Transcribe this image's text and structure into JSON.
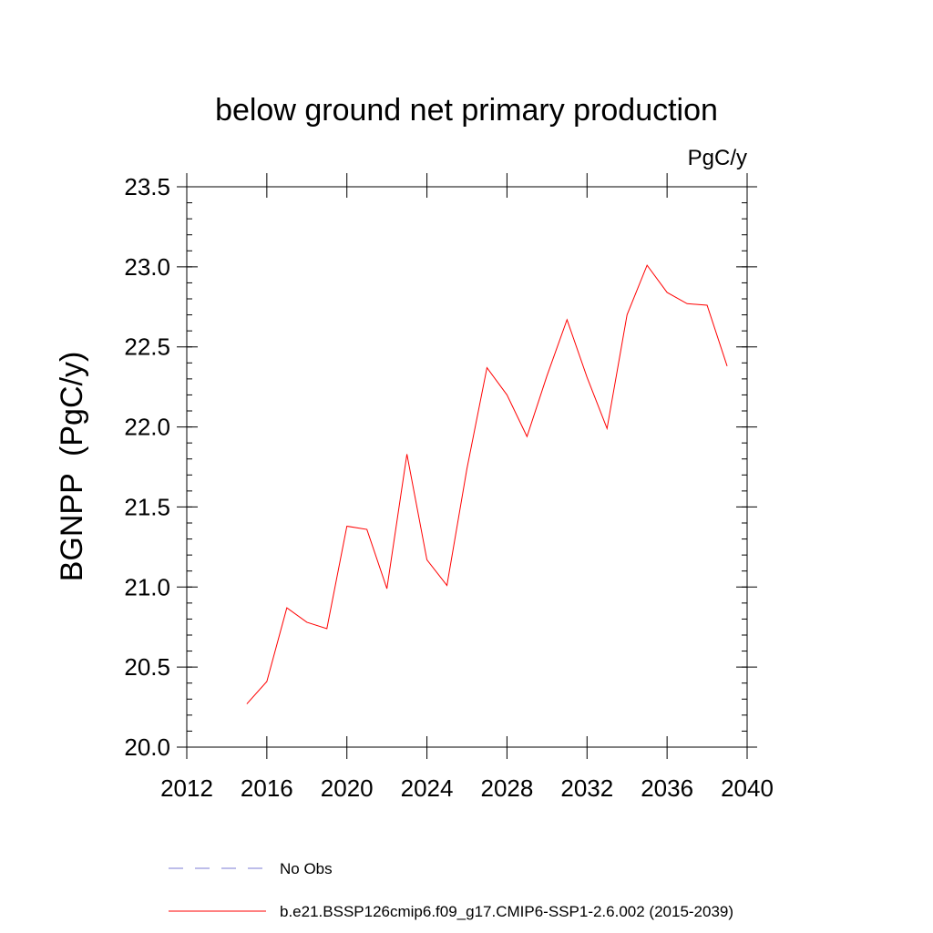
{
  "chart_data": {
    "type": "line",
    "title": "below ground net primary production",
    "units_label": "PgC/y",
    "ylabel": "BGNPP  (PgC/y)",
    "xlabel": "",
    "xlim": [
      2012,
      2040
    ],
    "ylim": [
      20.0,
      23.5
    ],
    "x_ticks": [
      2012,
      2016,
      2020,
      2024,
      2028,
      2032,
      2036,
      2040
    ],
    "y_ticks": [
      20.0,
      20.5,
      21.0,
      21.5,
      22.0,
      22.5,
      23.0,
      23.5
    ],
    "x_tick_labels": [
      "2012",
      "2016",
      "2020",
      "2024",
      "2028",
      "2032",
      "2036",
      "2040"
    ],
    "y_tick_labels": [
      "20.0",
      "20.5",
      "21.0",
      "21.5",
      "22.0",
      "22.5",
      "23.0",
      "23.5"
    ],
    "grid": false,
    "legend_position": "bottom",
    "series": [
      {
        "name": "b.e21.BSSP126cmip6.f09_g17.CMIP6-SSP1-2.6.002 (2015-2039)",
        "color": "#ff0000",
        "style": "solid",
        "x": [
          2015,
          2016,
          2017,
          2018,
          2019,
          2020,
          2021,
          2022,
          2023,
          2024,
          2025,
          2026,
          2027,
          2028,
          2029,
          2030,
          2031,
          2032,
          2033,
          2034,
          2035,
          2036,
          2037,
          2038,
          2039
        ],
        "values": [
          20.27,
          20.41,
          20.87,
          20.78,
          20.74,
          21.38,
          21.36,
          20.99,
          21.83,
          21.17,
          21.01,
          21.74,
          22.37,
          22.2,
          21.94,
          22.32,
          22.67,
          22.31,
          21.99,
          22.7,
          23.01,
          22.84,
          22.77,
          22.76,
          22.38
        ]
      },
      {
        "name": "No Obs",
        "color": "#7b7bd6",
        "style": "dashed",
        "x": [],
        "values": []
      }
    ]
  }
}
